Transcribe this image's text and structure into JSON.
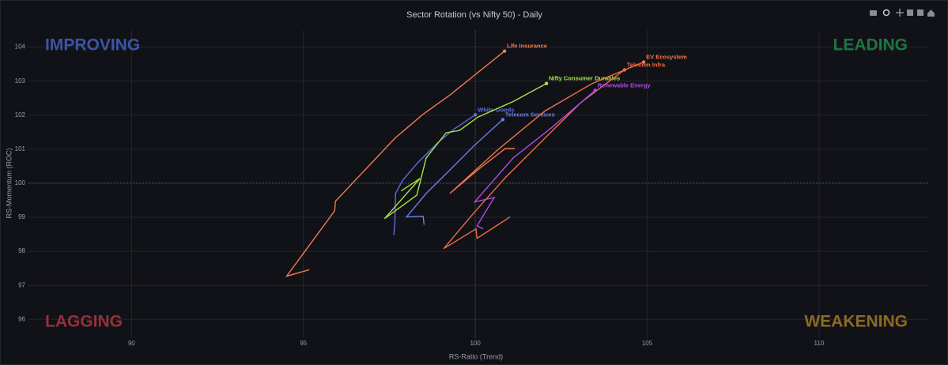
{
  "chart_data": {
    "type": "line",
    "title": "Sector Rotation (vs Nifty 50) - Daily",
    "x_label": "RS-Ratio (Trend)",
    "y_label": "RS-Momentum (ROC)",
    "xlim": [
      87,
      113.2
    ],
    "ylim": [
      95.45,
      104.5
    ],
    "xticks": [
      90,
      95,
      100,
      105,
      110
    ],
    "yticks": [
      96,
      97,
      98,
      99,
      100,
      101,
      102,
      103,
      104
    ],
    "grid": true,
    "center": {
      "x": 100,
      "y": 100
    },
    "quadrants": [
      {
        "text": "IMPROVING",
        "corner": "top-left",
        "color": "#3b55a6"
      },
      {
        "text": "LEADING",
        "corner": "top-right",
        "color": "#1f7444"
      },
      {
        "text": "LAGGING",
        "corner": "bottom-left",
        "color": "#97303a"
      },
      {
        "text": "WEAKENING",
        "corner": "bottom-right",
        "color": "#8c6a22"
      }
    ],
    "series": [
      {
        "name": "Life Insurance",
        "color": "#f47a4e",
        "x": [
          95.17,
          94.51,
          95.91,
          95.93,
          97.66,
          98.46,
          99.26,
          100.85
        ],
        "values": [
          97.46,
          97.27,
          99.19,
          99.47,
          101.32,
          102.01,
          102.59,
          103.88
        ]
      },
      {
        "name": "White Goods",
        "color": "#5a6ee0",
        "x": [
          97.63,
          97.66,
          97.68,
          97.89,
          98.34,
          98.92,
          99.38,
          100.0
        ],
        "values": [
          98.48,
          98.85,
          99.7,
          100.09,
          100.62,
          101.2,
          101.59,
          102.01
        ]
      },
      {
        "name": "Telecom Services",
        "color": "#6a7ee8",
        "x": [
          98.51,
          98.48,
          98.0,
          98.57,
          99.26,
          99.95,
          100.8
        ],
        "values": [
          98.78,
          99.03,
          99.01,
          99.7,
          100.39,
          101.09,
          101.87
        ]
      },
      {
        "name": "Nifty Consumer Durables",
        "color": "#a6e34a",
        "x": [
          97.84,
          98.39,
          97.36,
          98.3,
          98.57,
          99.15,
          99.54,
          100.07,
          101.1,
          102.07
        ],
        "values": [
          99.77,
          100.14,
          98.96,
          99.65,
          100.74,
          101.48,
          101.55,
          101.94,
          102.4,
          102.93
        ]
      },
      {
        "name": "EV Ecosystem",
        "color": "#f2744a",
        "x": [
          101.15,
          100.87,
          100.07,
          99.26,
          100.64,
          102.02,
          103.4,
          104.9
        ],
        "values": [
          101.02,
          101.02,
          100.39,
          99.7,
          100.97,
          102.12,
          102.93,
          103.56
        ]
      },
      {
        "name": "Telecom Infra",
        "color": "#ee6a48",
        "x": [
          101.01,
          100.05,
          100.02,
          99.08,
          99.95,
          100.87,
          101.79,
          103.06,
          104.34
        ],
        "values": [
          99.01,
          98.38,
          98.66,
          98.08,
          99.12,
          100.16,
          101.09,
          102.36,
          103.33
        ]
      },
      {
        "name": "Renewable Energy",
        "color": "#b04ce6",
        "x": [
          100.23,
          100.05,
          100.55,
          99.98,
          101.1,
          102.25,
          103.49
        ],
        "values": [
          98.66,
          98.75,
          99.58,
          99.45,
          100.74,
          101.66,
          102.73
        ]
      }
    ]
  }
}
